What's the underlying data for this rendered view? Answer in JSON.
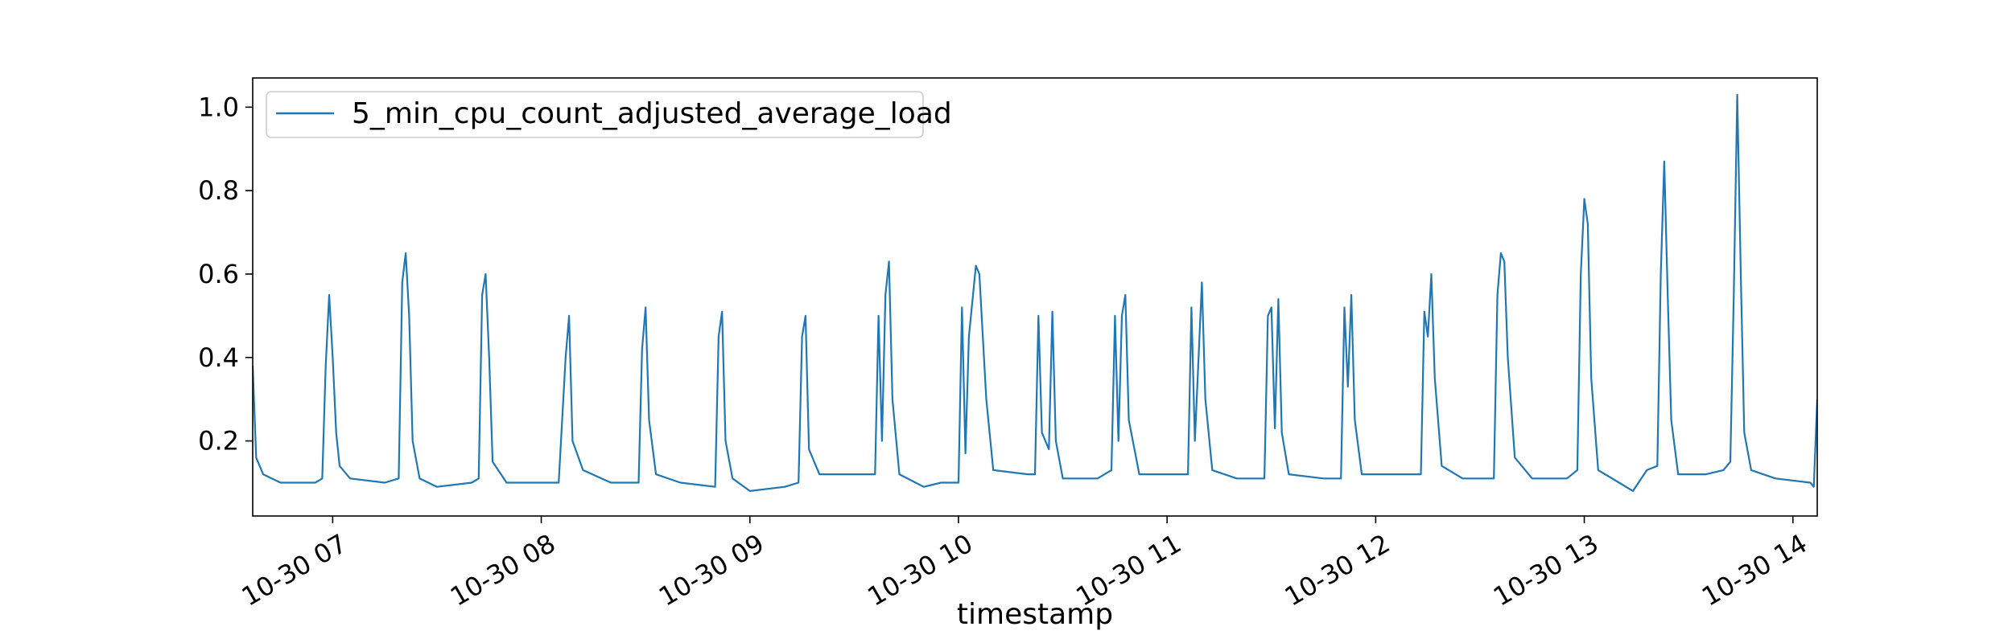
{
  "chart_data": {
    "type": "line",
    "title": "",
    "xlabel": "timestamp",
    "ylabel": "",
    "x_range": [
      "10-30 06:37",
      "10-30 14:07"
    ],
    "ylim": [
      0.02,
      1.07
    ],
    "grid": false,
    "legend_position": "top-left",
    "x_ticks": [
      {
        "time": "10-30 07:00",
        "label": "10-30 07"
      },
      {
        "time": "10-30 08:00",
        "label": "10-30 08"
      },
      {
        "time": "10-30 09:00",
        "label": "10-30 09"
      },
      {
        "time": "10-30 10:00",
        "label": "10-30 10"
      },
      {
        "time": "10-30 11:00",
        "label": "10-30 11"
      },
      {
        "time": "10-30 12:00",
        "label": "10-30 12"
      },
      {
        "time": "10-30 13:00",
        "label": "10-30 13"
      },
      {
        "time": "10-30 14:00",
        "label": "10-30 14"
      }
    ],
    "y_ticks": [
      {
        "value": 0.2,
        "label": "0.2"
      },
      {
        "value": 0.4,
        "label": "0.4"
      },
      {
        "value": 0.6,
        "label": "0.6"
      },
      {
        "value": 0.8,
        "label": "0.8"
      },
      {
        "value": 1.0,
        "label": "1.0"
      }
    ],
    "series": [
      {
        "name": "5_min_cpu_count_adjusted_average_load",
        "color": "#1f77b4",
        "points": [
          [
            "10-30 06:37",
            0.38
          ],
          [
            "10-30 06:38",
            0.16
          ],
          [
            "10-30 06:40",
            0.12
          ],
          [
            "10-30 06:45",
            0.1
          ],
          [
            "10-30 06:50",
            0.1
          ],
          [
            "10-30 06:55",
            0.1
          ],
          [
            "10-30 06:57",
            0.11
          ],
          [
            "10-30 06:58",
            0.38
          ],
          [
            "10-30 06:59",
            0.55
          ],
          [
            "10-30 07:00",
            0.4
          ],
          [
            "10-30 07:01",
            0.22
          ],
          [
            "10-30 07:02",
            0.14
          ],
          [
            "10-30 07:05",
            0.11
          ],
          [
            "10-30 07:15",
            0.1
          ],
          [
            "10-30 07:19",
            0.11
          ],
          [
            "10-30 07:20",
            0.58
          ],
          [
            "10-30 07:21",
            0.65
          ],
          [
            "10-30 07:22",
            0.5
          ],
          [
            "10-30 07:23",
            0.2
          ],
          [
            "10-30 07:25",
            0.11
          ],
          [
            "10-30 07:30",
            0.09
          ],
          [
            "10-30 07:40",
            0.1
          ],
          [
            "10-30 07:42",
            0.11
          ],
          [
            "10-30 07:43",
            0.55
          ],
          [
            "10-30 07:44",
            0.6
          ],
          [
            "10-30 07:45",
            0.4
          ],
          [
            "10-30 07:46",
            0.15
          ],
          [
            "10-30 07:50",
            0.1
          ],
          [
            "10-30 08:00",
            0.1
          ],
          [
            "10-30 08:05",
            0.1
          ],
          [
            "10-30 08:07",
            0.4
          ],
          [
            "10-30 08:08",
            0.5
          ],
          [
            "10-30 08:09",
            0.2
          ],
          [
            "10-30 08:12",
            0.13
          ],
          [
            "10-30 08:20",
            0.1
          ],
          [
            "10-30 08:28",
            0.1
          ],
          [
            "10-30 08:29",
            0.42
          ],
          [
            "10-30 08:30",
            0.52
          ],
          [
            "10-30 08:31",
            0.25
          ],
          [
            "10-30 08:33",
            0.12
          ],
          [
            "10-30 08:40",
            0.1
          ],
          [
            "10-30 08:50",
            0.09
          ],
          [
            "10-30 08:51",
            0.45
          ],
          [
            "10-30 08:52",
            0.51
          ],
          [
            "10-30 08:53",
            0.2
          ],
          [
            "10-30 08:55",
            0.11
          ],
          [
            "10-30 09:00",
            0.08
          ],
          [
            "10-30 09:10",
            0.09
          ],
          [
            "10-30 09:14",
            0.1
          ],
          [
            "10-30 09:15",
            0.45
          ],
          [
            "10-30 09:16",
            0.5
          ],
          [
            "10-30 09:17",
            0.18
          ],
          [
            "10-30 09:20",
            0.12
          ],
          [
            "10-30 09:30",
            0.12
          ],
          [
            "10-30 09:36",
            0.12
          ],
          [
            "10-30 09:37",
            0.5
          ],
          [
            "10-30 09:38",
            0.2
          ],
          [
            "10-30 09:39",
            0.55
          ],
          [
            "10-30 09:40",
            0.63
          ],
          [
            "10-30 09:41",
            0.3
          ],
          [
            "10-30 09:43",
            0.12
          ],
          [
            "10-30 09:50",
            0.09
          ],
          [
            "10-30 09:55",
            0.1
          ],
          [
            "10-30 10:00",
            0.1
          ],
          [
            "10-30 10:01",
            0.52
          ],
          [
            "10-30 10:02",
            0.17
          ],
          [
            "10-30 10:03",
            0.45
          ],
          [
            "10-30 10:05",
            0.62
          ],
          [
            "10-30 10:06",
            0.6
          ],
          [
            "10-30 10:08",
            0.3
          ],
          [
            "10-30 10:10",
            0.13
          ],
          [
            "10-30 10:20",
            0.12
          ],
          [
            "10-30 10:22",
            0.12
          ],
          [
            "10-30 10:23",
            0.5
          ],
          [
            "10-30 10:24",
            0.22
          ],
          [
            "10-30 10:26",
            0.18
          ],
          [
            "10-30 10:27",
            0.51
          ],
          [
            "10-30 10:28",
            0.2
          ],
          [
            "10-30 10:30",
            0.11
          ],
          [
            "10-30 10:40",
            0.11
          ],
          [
            "10-30 10:44",
            0.13
          ],
          [
            "10-30 10:45",
            0.5
          ],
          [
            "10-30 10:46",
            0.2
          ],
          [
            "10-30 10:47",
            0.5
          ],
          [
            "10-30 10:48",
            0.55
          ],
          [
            "10-30 10:49",
            0.25
          ],
          [
            "10-30 10:52",
            0.12
          ],
          [
            "10-30 11:00",
            0.12
          ],
          [
            "10-30 11:06",
            0.12
          ],
          [
            "10-30 11:07",
            0.52
          ],
          [
            "10-30 11:08",
            0.2
          ],
          [
            "10-30 11:10",
            0.58
          ],
          [
            "10-30 11:11",
            0.3
          ],
          [
            "10-30 11:13",
            0.13
          ],
          [
            "10-30 11:20",
            0.11
          ],
          [
            "10-30 11:28",
            0.11
          ],
          [
            "10-30 11:29",
            0.5
          ],
          [
            "10-30 11:30",
            0.52
          ],
          [
            "10-30 11:31",
            0.23
          ],
          [
            "10-30 11:32",
            0.54
          ],
          [
            "10-30 11:33",
            0.22
          ],
          [
            "10-30 11:35",
            0.12
          ],
          [
            "10-30 11:45",
            0.11
          ],
          [
            "10-30 11:50",
            0.11
          ],
          [
            "10-30 11:51",
            0.52
          ],
          [
            "10-30 11:52",
            0.33
          ],
          [
            "10-30 11:53",
            0.55
          ],
          [
            "10-30 11:54",
            0.25
          ],
          [
            "10-30 11:56",
            0.12
          ],
          [
            "10-30 12:05",
            0.12
          ],
          [
            "10-30 12:13",
            0.12
          ],
          [
            "10-30 12:14",
            0.51
          ],
          [
            "10-30 12:15",
            0.45
          ],
          [
            "10-30 12:16",
            0.6
          ],
          [
            "10-30 12:17",
            0.35
          ],
          [
            "10-30 12:19",
            0.14
          ],
          [
            "10-30 12:25",
            0.11
          ],
          [
            "10-30 12:34",
            0.11
          ],
          [
            "10-30 12:35",
            0.55
          ],
          [
            "10-30 12:36",
            0.65
          ],
          [
            "10-30 12:37",
            0.63
          ],
          [
            "10-30 12:38",
            0.4
          ],
          [
            "10-30 12:40",
            0.16
          ],
          [
            "10-30 12:45",
            0.11
          ],
          [
            "10-30 12:55",
            0.11
          ],
          [
            "10-30 12:58",
            0.13
          ],
          [
            "10-30 12:59",
            0.6
          ],
          [
            "10-30 13:00",
            0.78
          ],
          [
            "10-30 13:01",
            0.72
          ],
          [
            "10-30 13:02",
            0.35
          ],
          [
            "10-30 13:04",
            0.13
          ],
          [
            "10-30 13:10",
            0.1
          ],
          [
            "10-30 13:14",
            0.08
          ],
          [
            "10-30 13:18",
            0.13
          ],
          [
            "10-30 13:21",
            0.14
          ],
          [
            "10-30 13:22",
            0.6
          ],
          [
            "10-30 13:23",
            0.87
          ],
          [
            "10-30 13:24",
            0.55
          ],
          [
            "10-30 13:25",
            0.25
          ],
          [
            "10-30 13:27",
            0.12
          ],
          [
            "10-30 13:35",
            0.12
          ],
          [
            "10-30 13:40",
            0.13
          ],
          [
            "10-30 13:42",
            0.15
          ],
          [
            "10-30 13:43",
            0.55
          ],
          [
            "10-30 13:44",
            1.03
          ],
          [
            "10-30 13:45",
            0.6
          ],
          [
            "10-30 13:46",
            0.22
          ],
          [
            "10-30 13:48",
            0.13
          ],
          [
            "10-30 13:55",
            0.11
          ],
          [
            "10-30 14:05",
            0.1
          ],
          [
            "10-30 14:06",
            0.09
          ],
          [
            "10-30 14:07",
            0.3
          ]
        ]
      }
    ]
  }
}
